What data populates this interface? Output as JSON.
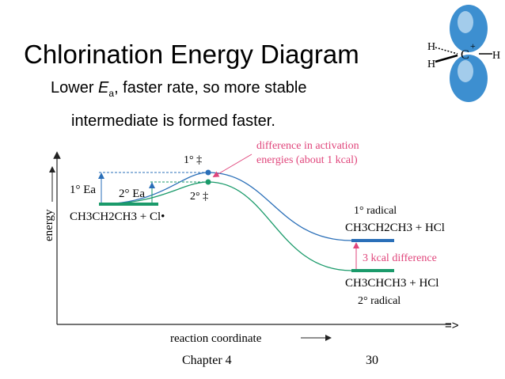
{
  "slide": {
    "title": "Chlorination Energy Diagram",
    "subtitle_a": "Lower ",
    "subtitle_ea_E": "E",
    "subtitle_ea_sub": "a",
    "subtitle_b": ", faster rate, so more stable",
    "subtitle_line2": "intermediate is formed faster.",
    "footer_chapter": "Chapter 4",
    "footer_page": "30"
  },
  "diagram": {
    "y_axis_label": "energy",
    "x_axis_label": "reaction coordinate",
    "arrow_text": "=>",
    "reactant": "CH3CH2CH3 + Cl•",
    "ea_primary": "1° Ea",
    "ea_secondary": "2° Ea",
    "ts_primary": "1° ‡",
    "ts_secondary": "2° ‡",
    "annotation_line1": "difference in activation",
    "annotation_line2": "energies (about 1 kcal)",
    "primary_label": "1° radical",
    "primary_product": "CH3CH2CH3 + HCl",
    "difference_label": "3 kcal difference",
    "secondary_product": "CH3CHCH3 + HCl",
    "secondary_label": "2° radical",
    "colors": {
      "primary": "#2a6fb8",
      "secondary": "#1a9a6a",
      "accent": "#e0457b"
    }
  },
  "orbital": {
    "left_top": "H",
    "left_bottom": "H",
    "center": "C",
    "charge": "+",
    "right": "H"
  }
}
